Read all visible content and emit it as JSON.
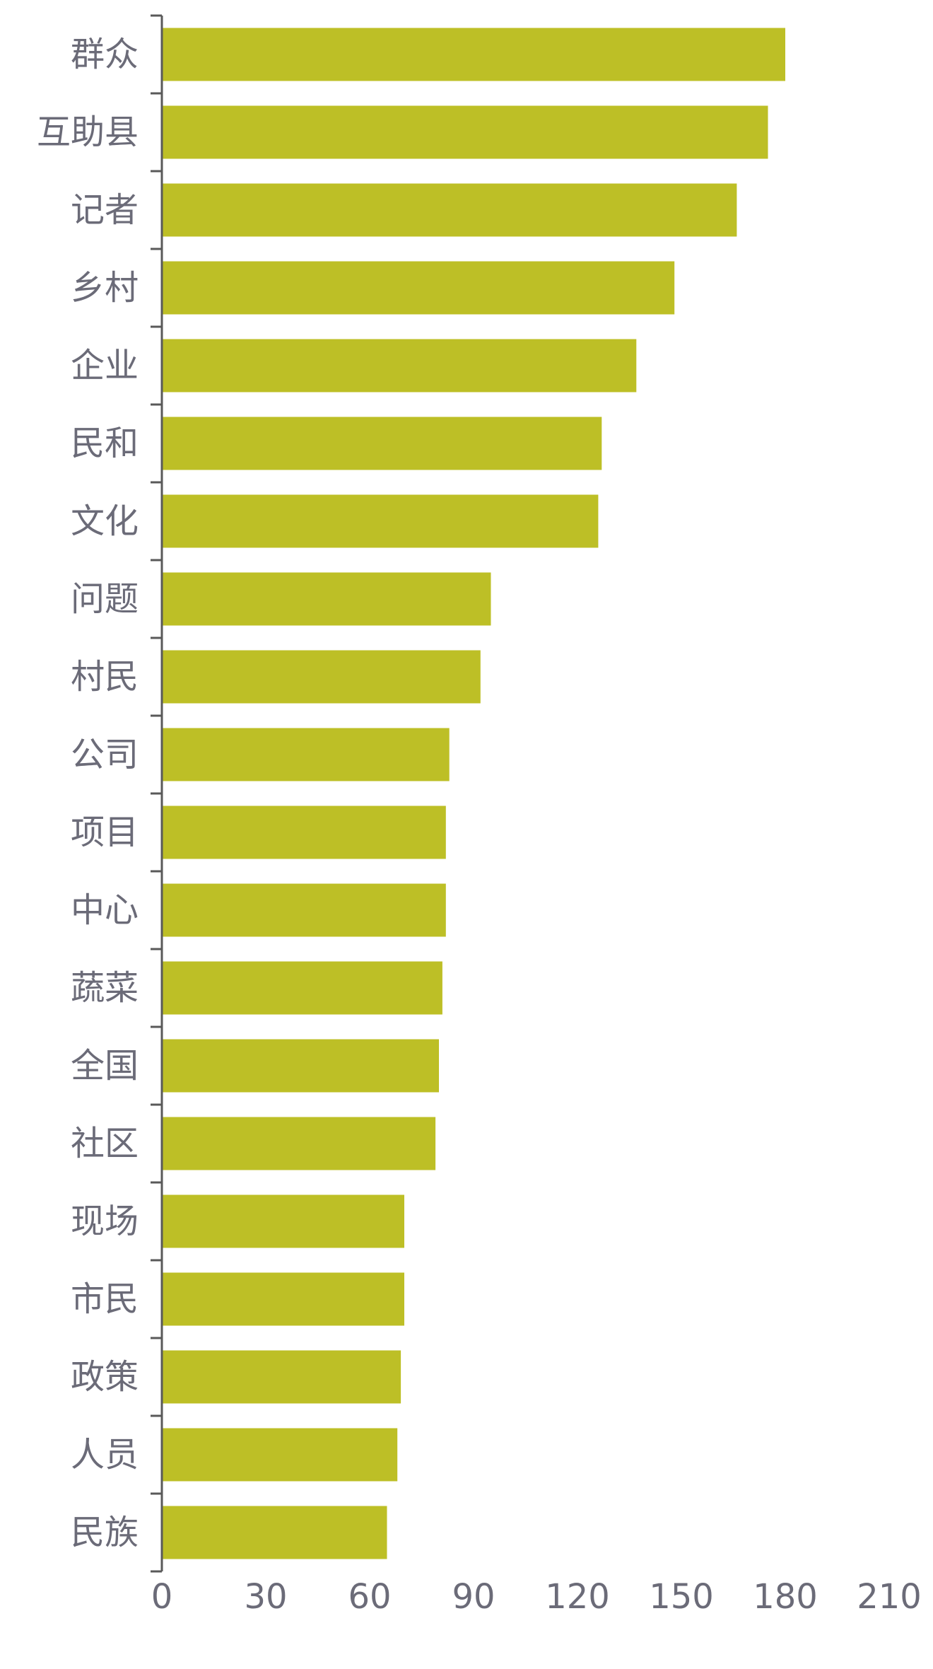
{
  "chart_data": {
    "type": "bar",
    "orientation": "horizontal",
    "categories": [
      "群众",
      "互助县",
      "记者",
      "乡村",
      "企业",
      "民和",
      "文化",
      "问题",
      "村民",
      "公司",
      "项目",
      "中心",
      "蔬菜",
      "全国",
      "社区",
      "现场",
      "市民",
      "政策",
      "人员",
      "民族"
    ],
    "values": [
      180,
      175,
      166,
      148,
      137,
      127,
      126,
      95,
      92,
      83,
      82,
      82,
      81,
      80,
      79,
      70,
      70,
      69,
      68,
      65
    ],
    "xlim": [
      0,
      210
    ],
    "xticks": [
      0,
      30,
      60,
      90,
      120,
      150,
      180,
      210
    ],
    "xtick_labels": [
      "0",
      "30",
      "60",
      "90",
      "120",
      "150",
      "180",
      "210"
    ],
    "title": "",
    "xlabel": "",
    "ylabel": "",
    "grid": false,
    "legend": "none",
    "bar_color": "#bdbf26",
    "axis_color": "#595959",
    "label_color": "#6b6b78"
  }
}
